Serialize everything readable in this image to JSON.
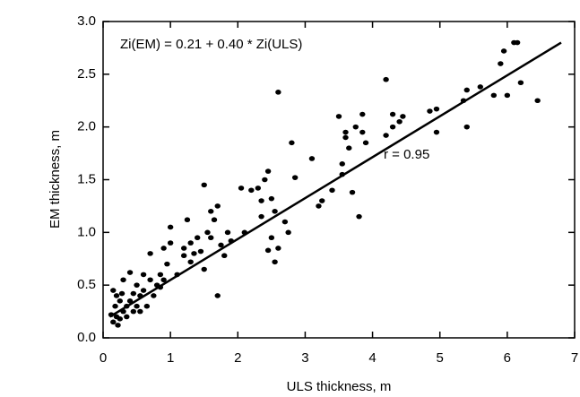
{
  "chart_data": {
    "type": "scatter",
    "x_label": "ULS thickness, m",
    "y_label": "EM thickness, m",
    "annotations": [
      "Zi(EM) = 0.21 + 0.40 * Zi(ULS)",
      "r = 0.95"
    ],
    "color": "#000000",
    "xlim": [
      0,
      7
    ],
    "ylim": [
      0,
      3
    ],
    "xticks": [
      0,
      1,
      2,
      3,
      4,
      5,
      6,
      7
    ],
    "yticks": [
      {
        "value": 0,
        "label": "0.0"
      },
      {
        "value": 0.5,
        "label": "0.5"
      },
      {
        "value": 1,
        "label": "1.0"
      },
      {
        "value": 1.5,
        "label": "1.5"
      },
      {
        "value": 2,
        "label": "2.0"
      },
      {
        "value": 2.5,
        "label": "2.5"
      },
      {
        "value": 3,
        "label": "3.0"
      }
    ],
    "fit_line": {
      "x": [
        0.1,
        6.8
      ],
      "y": [
        0.2,
        2.8
      ]
    },
    "x": [
      0.15,
      0.2,
      0.18,
      0.25,
      0.3,
      0.2,
      0.15,
      0.35,
      0.4,
      0.45,
      0.5,
      0.55,
      0.6,
      0.4,
      0.5,
      0.65,
      0.7,
      0.75,
      0.8,
      0.85,
      0.9,
      0.95,
      1.0,
      1.0,
      0.9,
      0.85,
      0.6,
      0.7,
      0.55,
      0.3,
      0.25,
      0.35,
      0.12,
      0.22,
      0.28,
      0.45,
      1.1,
      1.2,
      1.25,
      1.3,
      1.35,
      1.4,
      1.45,
      1.5,
      1.5,
      1.55,
      1.6,
      1.6,
      1.65,
      1.7,
      1.7,
      1.75,
      1.8,
      1.85,
      1.9,
      1.3,
      1.2,
      2.05,
      2.1,
      2.2,
      2.3,
      2.35,
      2.4,
      2.45,
      2.45,
      2.5,
      2.5,
      2.55,
      2.6,
      2.6,
      2.7,
      2.75,
      2.8,
      2.85,
      2.35,
      2.55,
      3.1,
      3.2,
      3.25,
      3.5,
      3.55,
      3.6,
      3.6,
      3.65,
      3.7,
      3.8,
      3.85,
      3.85,
      3.9,
      3.4,
      3.55,
      3.75,
      4.2,
      4.2,
      4.3,
      4.3,
      4.4,
      4.45,
      4.85,
      4.95,
      4.95,
      5.35,
      5.4,
      5.4,
      5.6,
      5.8,
      5.9,
      6.0,
      6.1,
      6.15,
      6.2,
      6.45,
      5.95
    ],
    "y": [
      0.15,
      0.2,
      0.3,
      0.18,
      0.25,
      0.4,
      0.45,
      0.3,
      0.35,
      0.42,
      0.3,
      0.4,
      0.45,
      0.62,
      0.5,
      0.3,
      0.55,
      0.4,
      0.5,
      0.48,
      0.55,
      0.7,
      0.9,
      1.05,
      0.85,
      0.6,
      0.6,
      0.8,
      0.25,
      0.55,
      0.35,
      0.2,
      0.22,
      0.12,
      0.42,
      0.25,
      0.6,
      0.85,
      1.12,
      0.9,
      0.8,
      0.95,
      0.82,
      1.45,
      0.65,
      1.0,
      0.95,
      1.2,
      1.12,
      0.4,
      1.25,
      0.88,
      0.78,
      1.0,
      0.92,
      0.72,
      0.78,
      1.42,
      1.0,
      1.4,
      1.42,
      1.15,
      1.5,
      1.58,
      0.83,
      0.95,
      1.32,
      1.2,
      0.85,
      2.33,
      1.1,
      1.0,
      1.85,
      1.52,
      1.3,
      0.72,
      1.7,
      1.25,
      1.3,
      2.1,
      1.55,
      1.95,
      1.9,
      1.8,
      1.38,
      1.15,
      2.12,
      1.95,
      1.85,
      1.4,
      1.65,
      2.0,
      2.45,
      1.92,
      2.12,
      2.0,
      2.05,
      2.1,
      2.15,
      2.17,
      1.95,
      2.25,
      2.35,
      2.0,
      2.38,
      2.3,
      2.6,
      2.3,
      2.8,
      2.8,
      2.42,
      2.25,
      2.72
    ]
  }
}
